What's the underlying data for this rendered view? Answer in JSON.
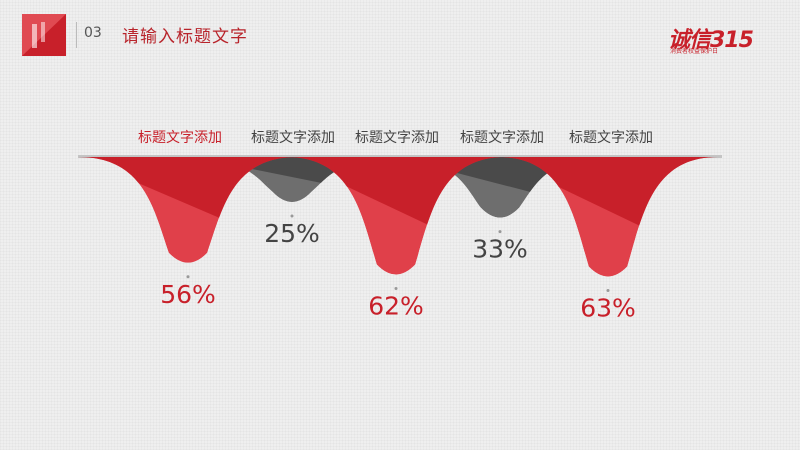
{
  "header": {
    "slide_number": "03",
    "title": "请输入标题文字",
    "brand_main": "诚信315",
    "brand_sub": "消费者权益保护日"
  },
  "colors": {
    "red": "#c8202a",
    "red_light": "#e0404a",
    "gray": "#4a4a4a",
    "gray_light": "#6e6e6e",
    "value_red": "#c8202a",
    "value_gray": "#444444"
  },
  "chart_data": {
    "type": "bar",
    "categories": [
      "标题文字添加",
      "标题文字添加",
      "标题文字添加",
      "标题文字添加",
      "标题文字添加"
    ],
    "values": [
      56,
      25,
      62,
      33,
      63
    ],
    "value_labels": [
      "56%",
      "25%",
      "62%",
      "33%",
      "63%"
    ],
    "series_colors": [
      "red",
      "gray",
      "red",
      "gray",
      "red"
    ],
    "ylim": [
      0,
      100
    ],
    "grid": false
  }
}
